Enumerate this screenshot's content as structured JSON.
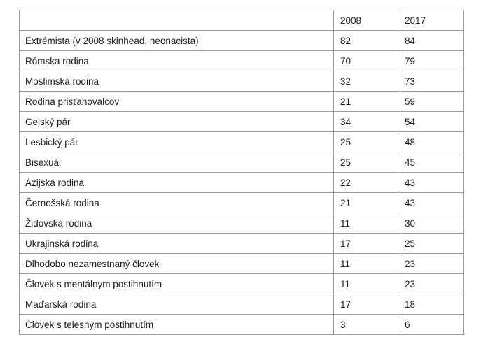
{
  "table": {
    "columns": [
      "",
      "2008",
      "2017"
    ],
    "rows": [
      {
        "label": "Extrémista (v 2008 skinhead, neonacista)",
        "y2008": "82",
        "y2017": "84"
      },
      {
        "label": "Rómska rodina",
        "y2008": "70",
        "y2017": "79"
      },
      {
        "label": "Moslimská rodina",
        "y2008": "32",
        "y2017": "73"
      },
      {
        "label": "Rodina prisťahovalcov",
        "y2008": "21",
        "y2017": "59"
      },
      {
        "label": "Gejský pár",
        "y2008": "34",
        "y2017": "54"
      },
      {
        "label": "Lesbický pár",
        "y2008": "25",
        "y2017": "48"
      },
      {
        "label": "Bisexuál",
        "y2008": "25",
        "y2017": "45"
      },
      {
        "label": "Ázijská rodina",
        "y2008": "22",
        "y2017": "43"
      },
      {
        "label": "Černošská rodina",
        "y2008": "21",
        "y2017": "43"
      },
      {
        "label": "Židovská rodina",
        "y2008": "11",
        "y2017": "30"
      },
      {
        "label": "Ukrajinská rodina",
        "y2008": "17",
        "y2017": "25"
      },
      {
        "label": "Dlhodobo nezamestnaný človek",
        "y2008": "11",
        "y2017": "23"
      },
      {
        "label": "Človek s mentálnym postihnutím",
        "y2008": "11",
        "y2017": "23"
      },
      {
        "label": "Maďarská rodina",
        "y2008": "17",
        "y2017": "18"
      },
      {
        "label": "Človek s telesným postihnutím",
        "y2008": "3",
        "y2017": "6"
      }
    ]
  },
  "chart_data": {
    "type": "table",
    "title": "",
    "categories": [
      "Extrémista (v 2008 skinhead, neonacista)",
      "Rómska rodina",
      "Moslimská rodina",
      "Rodina prisťahovalcov",
      "Gejský pár",
      "Lesbický pár",
      "Bisexuál",
      "Ázijská rodina",
      "Černošská rodina",
      "Židovská rodina",
      "Ukrajinská rodina",
      "Dlhodobo nezamestnaný človek",
      "Človek s mentálnym postihnutím",
      "Maďarská rodina",
      "Človek s telesným postihnutím"
    ],
    "series": [
      {
        "name": "2008",
        "values": [
          82,
          70,
          32,
          21,
          34,
          25,
          25,
          22,
          21,
          11,
          17,
          11,
          11,
          17,
          3
        ]
      },
      {
        "name": "2017",
        "values": [
          84,
          79,
          73,
          59,
          54,
          48,
          45,
          43,
          43,
          30,
          25,
          23,
          23,
          18,
          6
        ]
      }
    ],
    "legend_position": "none",
    "grid": true
  },
  "colors": {
    "background": "#ffffff",
    "border": "#9b9b9b",
    "text": "#212121"
  }
}
